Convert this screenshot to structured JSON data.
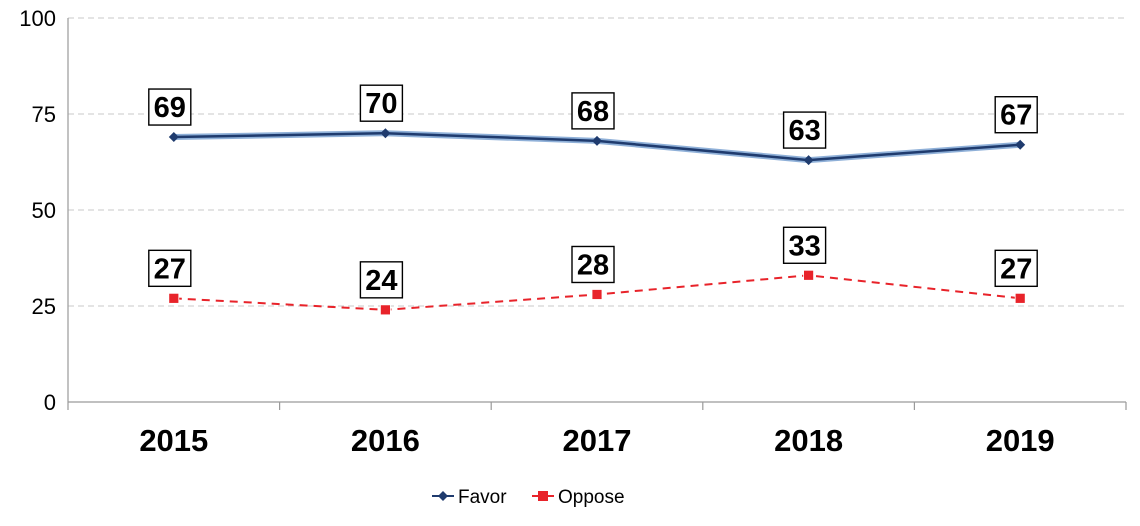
{
  "chart_data": {
    "type": "line",
    "categories": [
      "2015",
      "2016",
      "2017",
      "2018",
      "2019"
    ],
    "series": [
      {
        "name": "Favor",
        "values": [
          69,
          70,
          68,
          63,
          67
        ],
        "color": "#1f3b6e",
        "marker": "diamond",
        "line_style": "solid"
      },
      {
        "name": "Oppose",
        "values": [
          27,
          24,
          28,
          33,
          27
        ],
        "color": "#e8232a",
        "marker": "square",
        "line_style": "dashed"
      }
    ],
    "yticks": [
      "0",
      "25",
      "50",
      "75",
      "100"
    ],
    "ylim": [
      0,
      100
    ],
    "grid": true,
    "legend_position": "bottom-center"
  }
}
